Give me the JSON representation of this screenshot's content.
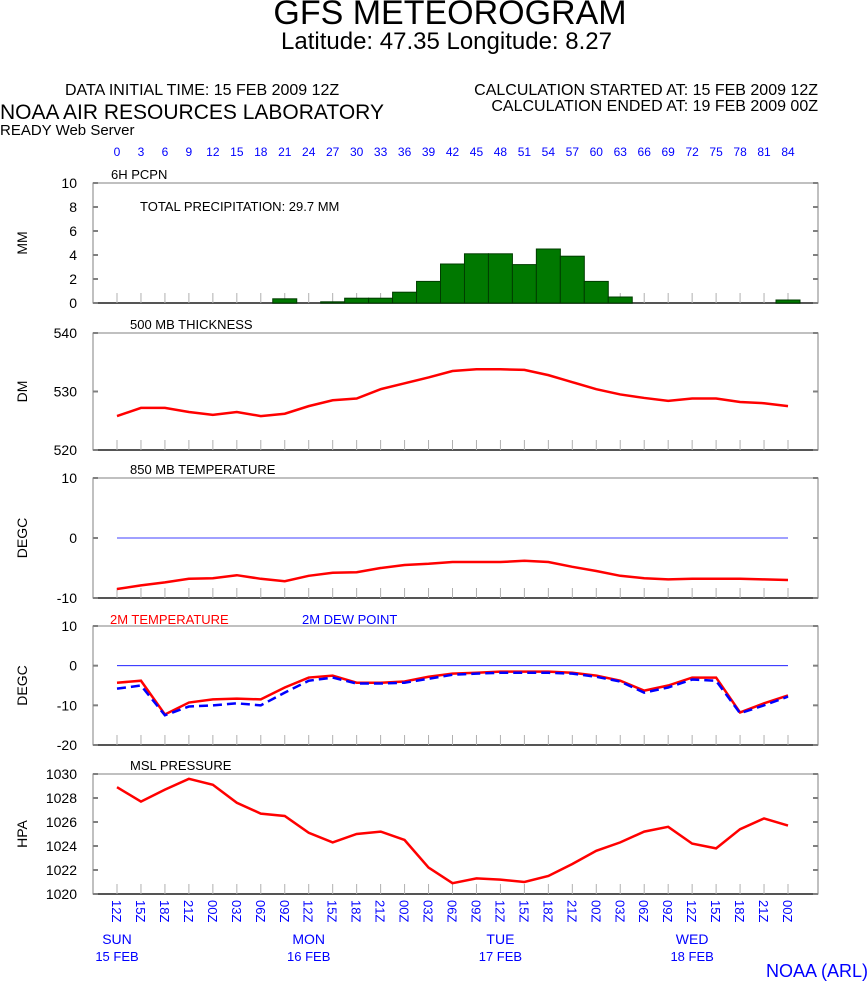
{
  "header": {
    "title": "GFS METEOROGRAM",
    "subtitle": "Latitude: 47.35 Longitude:   8.27",
    "data_initial_time": "DATA INITIAL TIME: 15 FEB 2009 12Z",
    "calc_started": "CALCULATION STARTED AT: 15 FEB 2009 12Z",
    "calc_ended": "CALCULATION ENDED AT: 19 FEB 2009 00Z",
    "org": "NOAA AIR RESOURCES LABORATORY",
    "server": "READY Web Server",
    "footer": "NOAA (ARL)"
  },
  "colors": {
    "red": "#ff0000",
    "blue": "#0000ff",
    "green": "#007800",
    "axis": "#808080"
  },
  "chart_data": {
    "type": "line",
    "forecast_hours": [
      0,
      3,
      6,
      9,
      12,
      15,
      18,
      21,
      24,
      27,
      30,
      33,
      36,
      39,
      42,
      45,
      48,
      51,
      54,
      57,
      60,
      63,
      66,
      69,
      72,
      75,
      78,
      81,
      84
    ],
    "time_labels": [
      "12Z",
      "15Z",
      "18Z",
      "21Z",
      "00Z",
      "03Z",
      "06Z",
      "09Z",
      "12Z",
      "15Z",
      "18Z",
      "21Z",
      "00Z",
      "03Z",
      "06Z",
      "09Z",
      "12Z",
      "15Z",
      "18Z",
      "21Z",
      "00Z",
      "03Z",
      "06Z",
      "09Z",
      "12Z",
      "15Z",
      "18Z",
      "21Z",
      "00Z"
    ],
    "days": [
      {
        "hour": 0,
        "day": "SUN",
        "date": "15 FEB"
      },
      {
        "hour": 24,
        "day": "MON",
        "date": "16 FEB"
      },
      {
        "hour": 48,
        "day": "TUE",
        "date": "17 FEB"
      },
      {
        "hour": 72,
        "day": "WED",
        "date": "18 FEB"
      }
    ],
    "panels": [
      {
        "title": "6H PCPN",
        "type": "bar",
        "ylabel": "MM",
        "ylim": [
          0,
          10
        ],
        "yticks": [
          0,
          2,
          4,
          6,
          8,
          10
        ],
        "annotation": "TOTAL PRECIPITATION:  29.7 MM",
        "values": [
          0,
          0,
          0,
          0,
          0,
          0,
          0,
          0.35,
          0,
          0.1,
          0.4,
          0.4,
          0.9,
          1.8,
          3.25,
          4.1,
          4.1,
          3.2,
          4.5,
          3.9,
          1.8,
          0.5,
          0,
          0,
          0,
          0,
          0,
          0,
          0.25
        ]
      },
      {
        "title": "500 MB  THICKNESS",
        "type": "line",
        "ylabel": "DM",
        "ylim": [
          520,
          540
        ],
        "yticks": [
          520,
          530,
          540
        ],
        "series": [
          {
            "color": "#ff0000",
            "values": [
              525.8,
              527.2,
              527.2,
              526.5,
              526.0,
              526.5,
              525.8,
              526.2,
              527.5,
              528.5,
              528.8,
              530.4,
              531.4,
              532.4,
              533.5,
              533.8,
              533.8,
              533.7,
              532.8,
              531.6,
              530.4,
              529.5,
              528.9,
              528.4,
              528.8,
              528.8,
              528.2,
              528.0,
              527.5
            ]
          }
        ]
      },
      {
        "title": "850 MB  TEMPERATURE",
        "type": "line",
        "ylabel": "DEGC",
        "ylim": [
          -10,
          10
        ],
        "yticks": [
          -10,
          0,
          10
        ],
        "zero_line": true,
        "series": [
          {
            "color": "#ff0000",
            "values": [
              -8.5,
              -7.9,
              -7.4,
              -6.8,
              -6.7,
              -6.2,
              -6.8,
              -7.2,
              -6.3,
              -5.8,
              -5.7,
              -5.0,
              -4.5,
              -4.3,
              -4.0,
              -4.0,
              -4.0,
              -3.8,
              -4.0,
              -4.8,
              -5.5,
              -6.3,
              -6.7,
              -6.9,
              -6.8,
              -6.8,
              -6.8,
              -6.9,
              -7.0
            ]
          }
        ]
      },
      {
        "title": "",
        "type": "line",
        "ylabel": "DEGC",
        "ylim": [
          -20,
          10
        ],
        "yticks": [
          -20,
          -10,
          0,
          10
        ],
        "zero_line": true,
        "series": [
          {
            "name": "2M TEMPERATURE",
            "color": "#ff0000",
            "dash": false,
            "values": [
              -4.3,
              -3.8,
              -12.3,
              -9.3,
              -8.5,
              -8.3,
              -8.5,
              -5.5,
              -3.0,
              -2.5,
              -4.3,
              -4.3,
              -4.0,
              -2.8,
              -2.0,
              -1.8,
              -1.5,
              -1.5,
              -1.5,
              -1.8,
              -2.5,
              -3.8,
              -6.3,
              -5.0,
              -3.0,
              -3.0,
              -11.8,
              -9.5,
              -7.5
            ]
          },
          {
            "name": "2M   DEW POINT",
            "color": "#0000ff",
            "dash": true,
            "values": [
              -5.8,
              -5.0,
              -12.5,
              -10.3,
              -10.0,
              -9.5,
              -10.0,
              -6.8,
              -3.8,
              -3.0,
              -4.5,
              -4.5,
              -4.3,
              -3.3,
              -2.3,
              -2.0,
              -1.8,
              -1.8,
              -1.8,
              -2.0,
              -2.8,
              -4.0,
              -6.8,
              -5.5,
              -3.5,
              -3.8,
              -12.0,
              -10.0,
              -7.8
            ]
          }
        ]
      },
      {
        "title": "MSL PRESSURE",
        "type": "line",
        "ylabel": "HPA",
        "ylim": [
          1020,
          1030
        ],
        "yticks": [
          1020,
          1022,
          1024,
          1026,
          1028,
          1030
        ],
        "series": [
          {
            "color": "#ff0000",
            "values": [
              1028.9,
              1027.7,
              1028.7,
              1029.6,
              1029.1,
              1027.6,
              1026.7,
              1026.5,
              1025.1,
              1024.3,
              1025.0,
              1025.2,
              1024.5,
              1022.2,
              1020.9,
              1021.3,
              1021.2,
              1021.0,
              1021.5,
              1022.5,
              1023.6,
              1024.3,
              1025.2,
              1025.6,
              1024.2,
              1023.8,
              1025.4,
              1026.3,
              1025.7
            ]
          }
        ]
      }
    ]
  }
}
